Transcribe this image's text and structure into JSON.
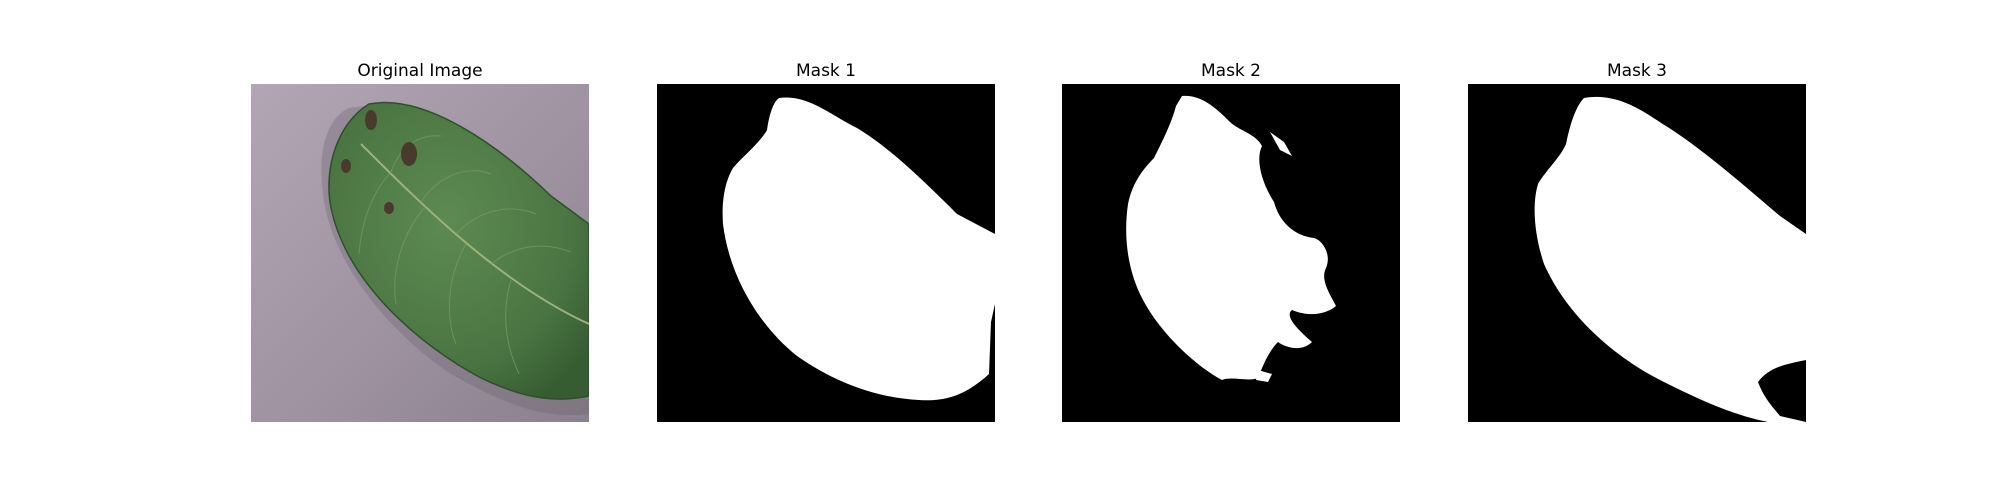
{
  "figure": {
    "panels": [
      {
        "title": "Original Image",
        "kind": "photo"
      },
      {
        "title": "Mask 1",
        "kind": "mask"
      },
      {
        "title": "Mask 2",
        "kind": "mask"
      },
      {
        "title": "Mask 3",
        "kind": "mask"
      }
    ]
  },
  "colors": {
    "background": "#a69aa6",
    "leaf": "#4e7a45",
    "leaf_dark": "#375c33",
    "vein": "#8aa66a",
    "spot": "#4a3a2e",
    "mask_bg": "#000000",
    "mask_fg": "#ffffff"
  }
}
